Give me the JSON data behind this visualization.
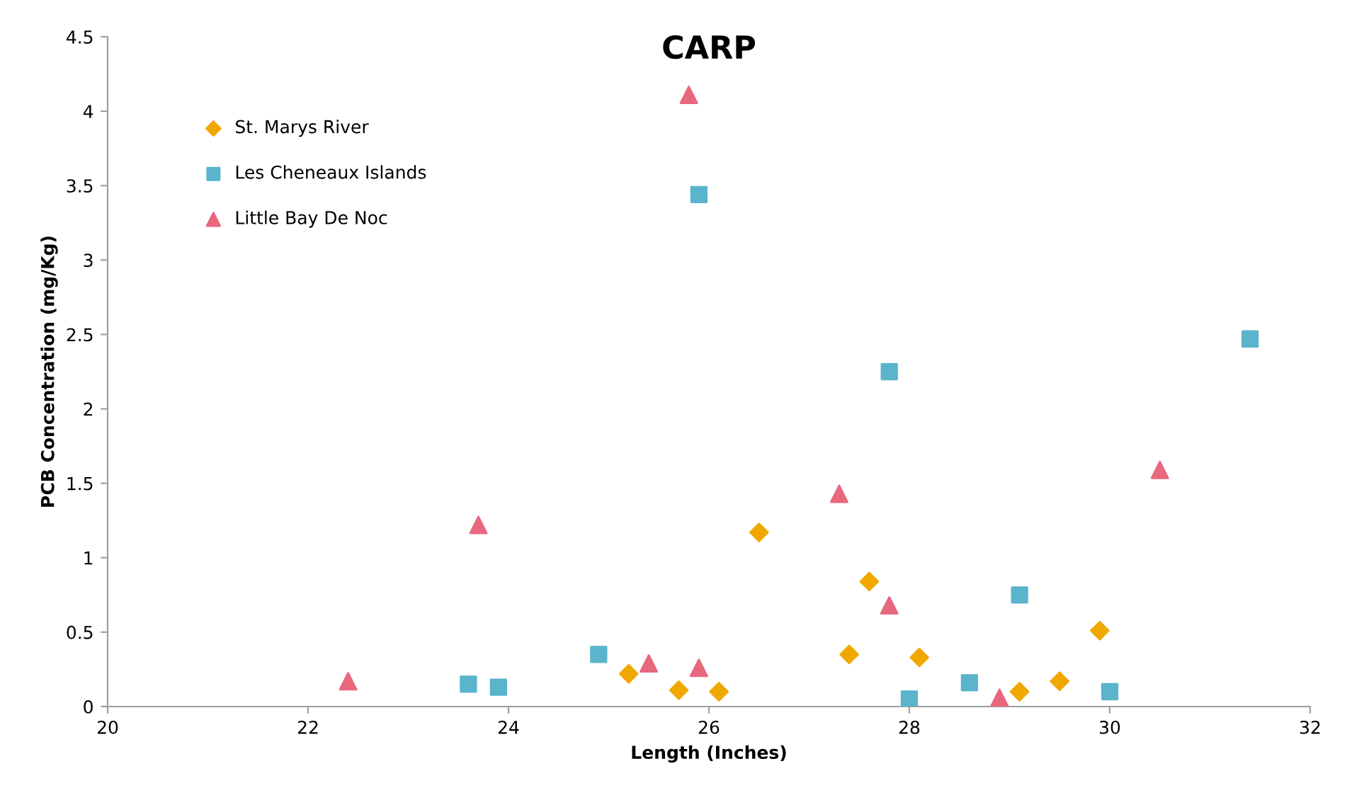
{
  "chart_data": {
    "type": "scatter",
    "title": "CARP",
    "xlabel": "Length (Inches)",
    "ylabel": "PCB Concentration (mg/Kg)",
    "xlim": [
      20,
      32
    ],
    "xticks": [
      20,
      22,
      24,
      26,
      28,
      30,
      32
    ],
    "ylim": [
      0,
      4.5
    ],
    "yticks": [
      0,
      0.5,
      1,
      1.5,
      2,
      2.5,
      3,
      3.5,
      4,
      4.5
    ],
    "grid": false,
    "legend": "top left",
    "series": [
      {
        "name": "St. Marys River",
        "color": "#f0a800",
        "marker": "diamond",
        "x": [
          25.2,
          25.7,
          26.1,
          26.5,
          27.4,
          27.6,
          28.1,
          29.1,
          29.5,
          29.9
        ],
        "values": [
          0.22,
          0.11,
          0.1,
          1.17,
          0.35,
          0.84,
          0.33,
          0.1,
          0.17,
          0.51
        ]
      },
      {
        "name": "Les Cheneaux Islands",
        "color": "#5ab4cc",
        "marker": "square",
        "x": [
          23.6,
          23.9,
          24.9,
          25.9,
          27.8,
          28.0,
          28.6,
          29.1,
          30.0,
          31.4
        ],
        "values": [
          0.15,
          0.13,
          0.35,
          3.44,
          2.25,
          0.05,
          0.16,
          0.75,
          0.1,
          2.47
        ]
      },
      {
        "name": "Little Bay De Noc",
        "color": "#e8687e",
        "marker": "triangle",
        "x": [
          22.4,
          23.7,
          25.4,
          25.8,
          25.9,
          27.3,
          27.8,
          28.9,
          30.5
        ],
        "values": [
          0.17,
          1.22,
          0.29,
          4.11,
          0.26,
          1.43,
          0.68,
          0.06,
          1.59
        ]
      }
    ]
  }
}
